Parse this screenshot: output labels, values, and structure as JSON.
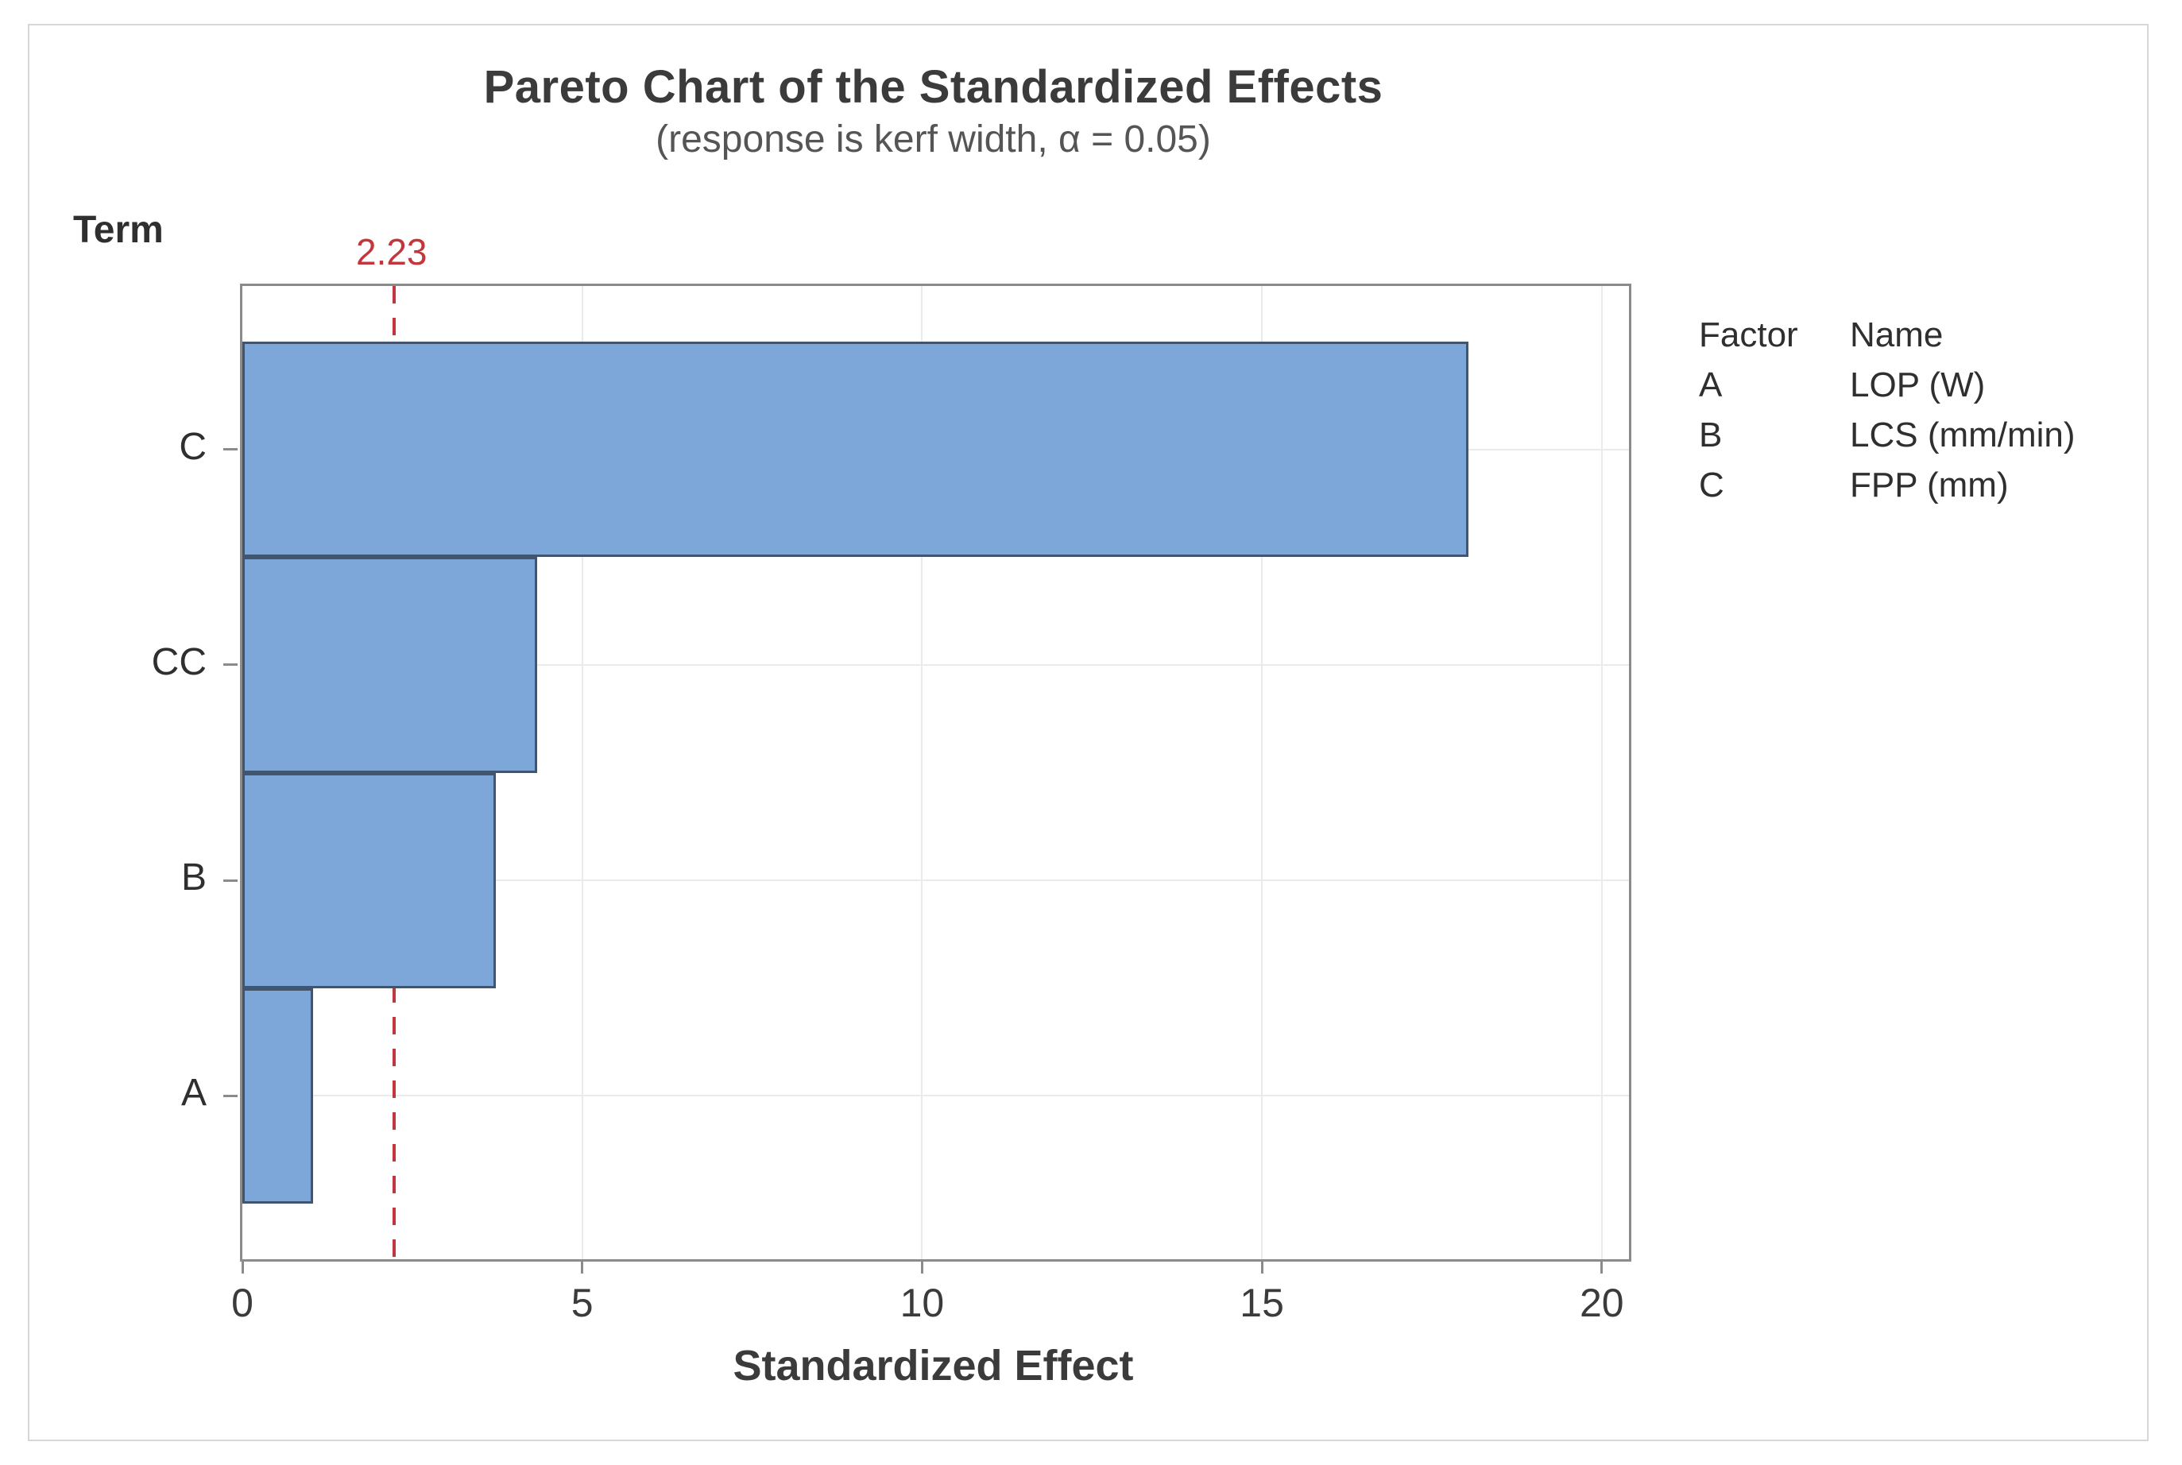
{
  "chart_data": {
    "type": "bar",
    "orientation": "horizontal",
    "title": "Pareto Chart of the Standardized Effects",
    "subtitle": "(response is kerf width, α = 0.05)",
    "ylabel": "Term",
    "xlabel": "Standardized Effect",
    "categories": [
      "C",
      "CC",
      "B",
      "A"
    ],
    "values": [
      18.0,
      4.3,
      3.7,
      1.0
    ],
    "xticks": [
      0,
      5,
      10,
      15,
      20
    ],
    "xlim": [
      0,
      20.4
    ],
    "reference_line": 2.23,
    "reference_line_label": "2.23",
    "grid": "light vertical gridlines at x ticks and horizontal gridlines at bar centers",
    "legend_position": "right"
  },
  "legend": {
    "header": {
      "factor": "Factor",
      "name": "Name"
    },
    "rows": [
      {
        "factor": "A",
        "name": "LOP (W)"
      },
      {
        "factor": "B",
        "name": "LCS (mm/min)"
      },
      {
        "factor": "C",
        "name": "FPP (mm)"
      }
    ]
  },
  "colors": {
    "bar_fill": "#7DA7D9",
    "bar_border": "#41556E",
    "reference_line": "#C2363C",
    "plot_border": "#8B8B8B",
    "gridline": "#EBEBEB",
    "axis_tick": "#8B8B8B",
    "title_text": "#3B3B3B",
    "subtitle_text": "#555555",
    "axis_text": "#2F2F2F",
    "frame_border": "#D7D7D7"
  }
}
